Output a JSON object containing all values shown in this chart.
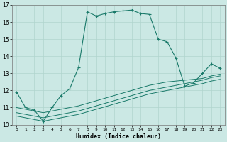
{
  "xlabel": "Humidex (Indice chaleur)",
  "bg_color": "#cbe8e4",
  "grid_color": "#b0d5ce",
  "line_color": "#1a7a6a",
  "xlim": [
    -0.5,
    23.5
  ],
  "ylim": [
    10,
    17
  ],
  "yticks": [
    10,
    11,
    12,
    13,
    14,
    15,
    16,
    17
  ],
  "xticks": [
    0,
    1,
    2,
    3,
    4,
    5,
    6,
    7,
    8,
    9,
    10,
    11,
    12,
    13,
    14,
    15,
    16,
    17,
    18,
    19,
    20,
    21,
    22,
    23
  ],
  "series1_x": [
    0,
    1,
    2,
    3,
    4,
    5,
    6,
    7,
    8,
    9,
    10,
    11,
    12,
    13,
    14,
    15,
    16,
    17,
    18,
    19,
    20,
    21,
    22,
    23
  ],
  "series1_y": [
    11.9,
    11.0,
    10.85,
    10.2,
    11.0,
    11.7,
    12.1,
    13.35,
    16.6,
    16.35,
    16.5,
    16.6,
    16.65,
    16.7,
    16.5,
    16.45,
    15.0,
    14.85,
    13.9,
    12.25,
    12.45,
    13.0,
    13.55,
    13.3
  ],
  "series2_x": [
    0,
    1,
    2,
    3,
    4,
    5,
    6,
    7,
    8,
    9,
    10,
    11,
    12,
    13,
    14,
    15,
    16,
    17,
    18,
    19,
    20,
    21,
    22,
    23
  ],
  "series2_y": [
    11.0,
    10.9,
    10.8,
    10.7,
    10.8,
    10.9,
    11.0,
    11.1,
    11.25,
    11.4,
    11.55,
    11.7,
    11.85,
    12.0,
    12.15,
    12.3,
    12.4,
    12.5,
    12.55,
    12.6,
    12.65,
    12.7,
    12.85,
    12.95
  ],
  "series3_x": [
    0,
    1,
    2,
    3,
    4,
    5,
    6,
    7,
    8,
    9,
    10,
    11,
    12,
    13,
    14,
    15,
    16,
    17,
    18,
    19,
    20,
    21,
    22,
    23
  ],
  "series3_y": [
    10.7,
    10.6,
    10.5,
    10.4,
    10.5,
    10.6,
    10.7,
    10.8,
    10.95,
    11.1,
    11.25,
    11.4,
    11.55,
    11.7,
    11.85,
    12.0,
    12.1,
    12.2,
    12.3,
    12.4,
    12.5,
    12.6,
    12.75,
    12.85
  ],
  "series4_x": [
    0,
    1,
    2,
    3,
    4,
    5,
    6,
    7,
    8,
    9,
    10,
    11,
    12,
    13,
    14,
    15,
    16,
    17,
    18,
    19,
    20,
    21,
    22,
    23
  ],
  "series4_y": [
    10.5,
    10.4,
    10.3,
    10.2,
    10.3,
    10.4,
    10.5,
    10.6,
    10.75,
    10.9,
    11.05,
    11.2,
    11.35,
    11.5,
    11.65,
    11.8,
    11.9,
    12.0,
    12.1,
    12.2,
    12.3,
    12.4,
    12.55,
    12.65
  ]
}
